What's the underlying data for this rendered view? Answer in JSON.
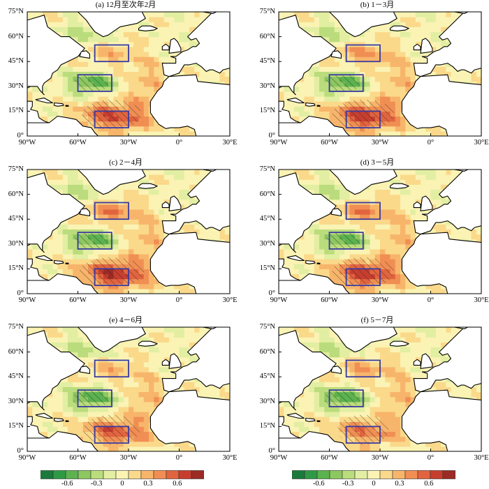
{
  "panels": [
    {
      "title": "(a) 12月至次年2月",
      "north_box_signal": 0.2,
      "subtropical_box_signal": -0.45,
      "tropical_box_signal": 0.5
    },
    {
      "title": "(b) 1－3月",
      "north_box_signal": 0.3,
      "subtropical_box_signal": -0.45,
      "tropical_box_signal": 0.55
    },
    {
      "title": "(c) 2－4月",
      "north_box_signal": 0.35,
      "subtropical_box_signal": -0.45,
      "tropical_box_signal": 0.6
    },
    {
      "title": "(d) 3－5月",
      "north_box_signal": 0.35,
      "subtropical_box_signal": -0.45,
      "tropical_box_signal": 0.55
    },
    {
      "title": "(e) 4－6月",
      "north_box_signal": 0.2,
      "subtropical_box_signal": -0.5,
      "tropical_box_signal": 0.45
    },
    {
      "title": "(f) 5－7月",
      "north_box_signal": 0.25,
      "subtropical_box_signal": -0.5,
      "tropical_box_signal": 0.35
    }
  ],
  "lat_labels": [
    "75°N",
    "60°N",
    "45°N",
    "30°N",
    "15°N",
    "0°"
  ],
  "lon_labels": [
    "90°W",
    "60°W",
    "30°W",
    "0°",
    "30°E"
  ],
  "boxes": [
    {
      "lon": [
        -50,
        -30
      ],
      "lat": [
        45,
        55
      ]
    },
    {
      "lon": [
        -60,
        -40
      ],
      "lat": [
        27,
        37
      ]
    },
    {
      "lon": [
        -50,
        -30
      ],
      "lat": [
        5,
        15
      ]
    }
  ],
  "colorbar": {
    "labels": [
      "-0.6",
      "-0.3",
      "0",
      "0.3",
      "0.6"
    ],
    "colors": [
      "#1b7a3b",
      "#2f9a45",
      "#5bb24e",
      "#8dc760",
      "#bbdc7c",
      "#e2eea2",
      "#faf3b4",
      "#fbd98a",
      "#f7b56b",
      "#f08e53",
      "#e2643f",
      "#c73e2f",
      "#9b2b24"
    ]
  },
  "colors": {
    "land": "#ffffff",
    "coast": "#000000",
    "box": "#3a3aa0",
    "ocean_neutral": "#f7f0b0"
  }
}
